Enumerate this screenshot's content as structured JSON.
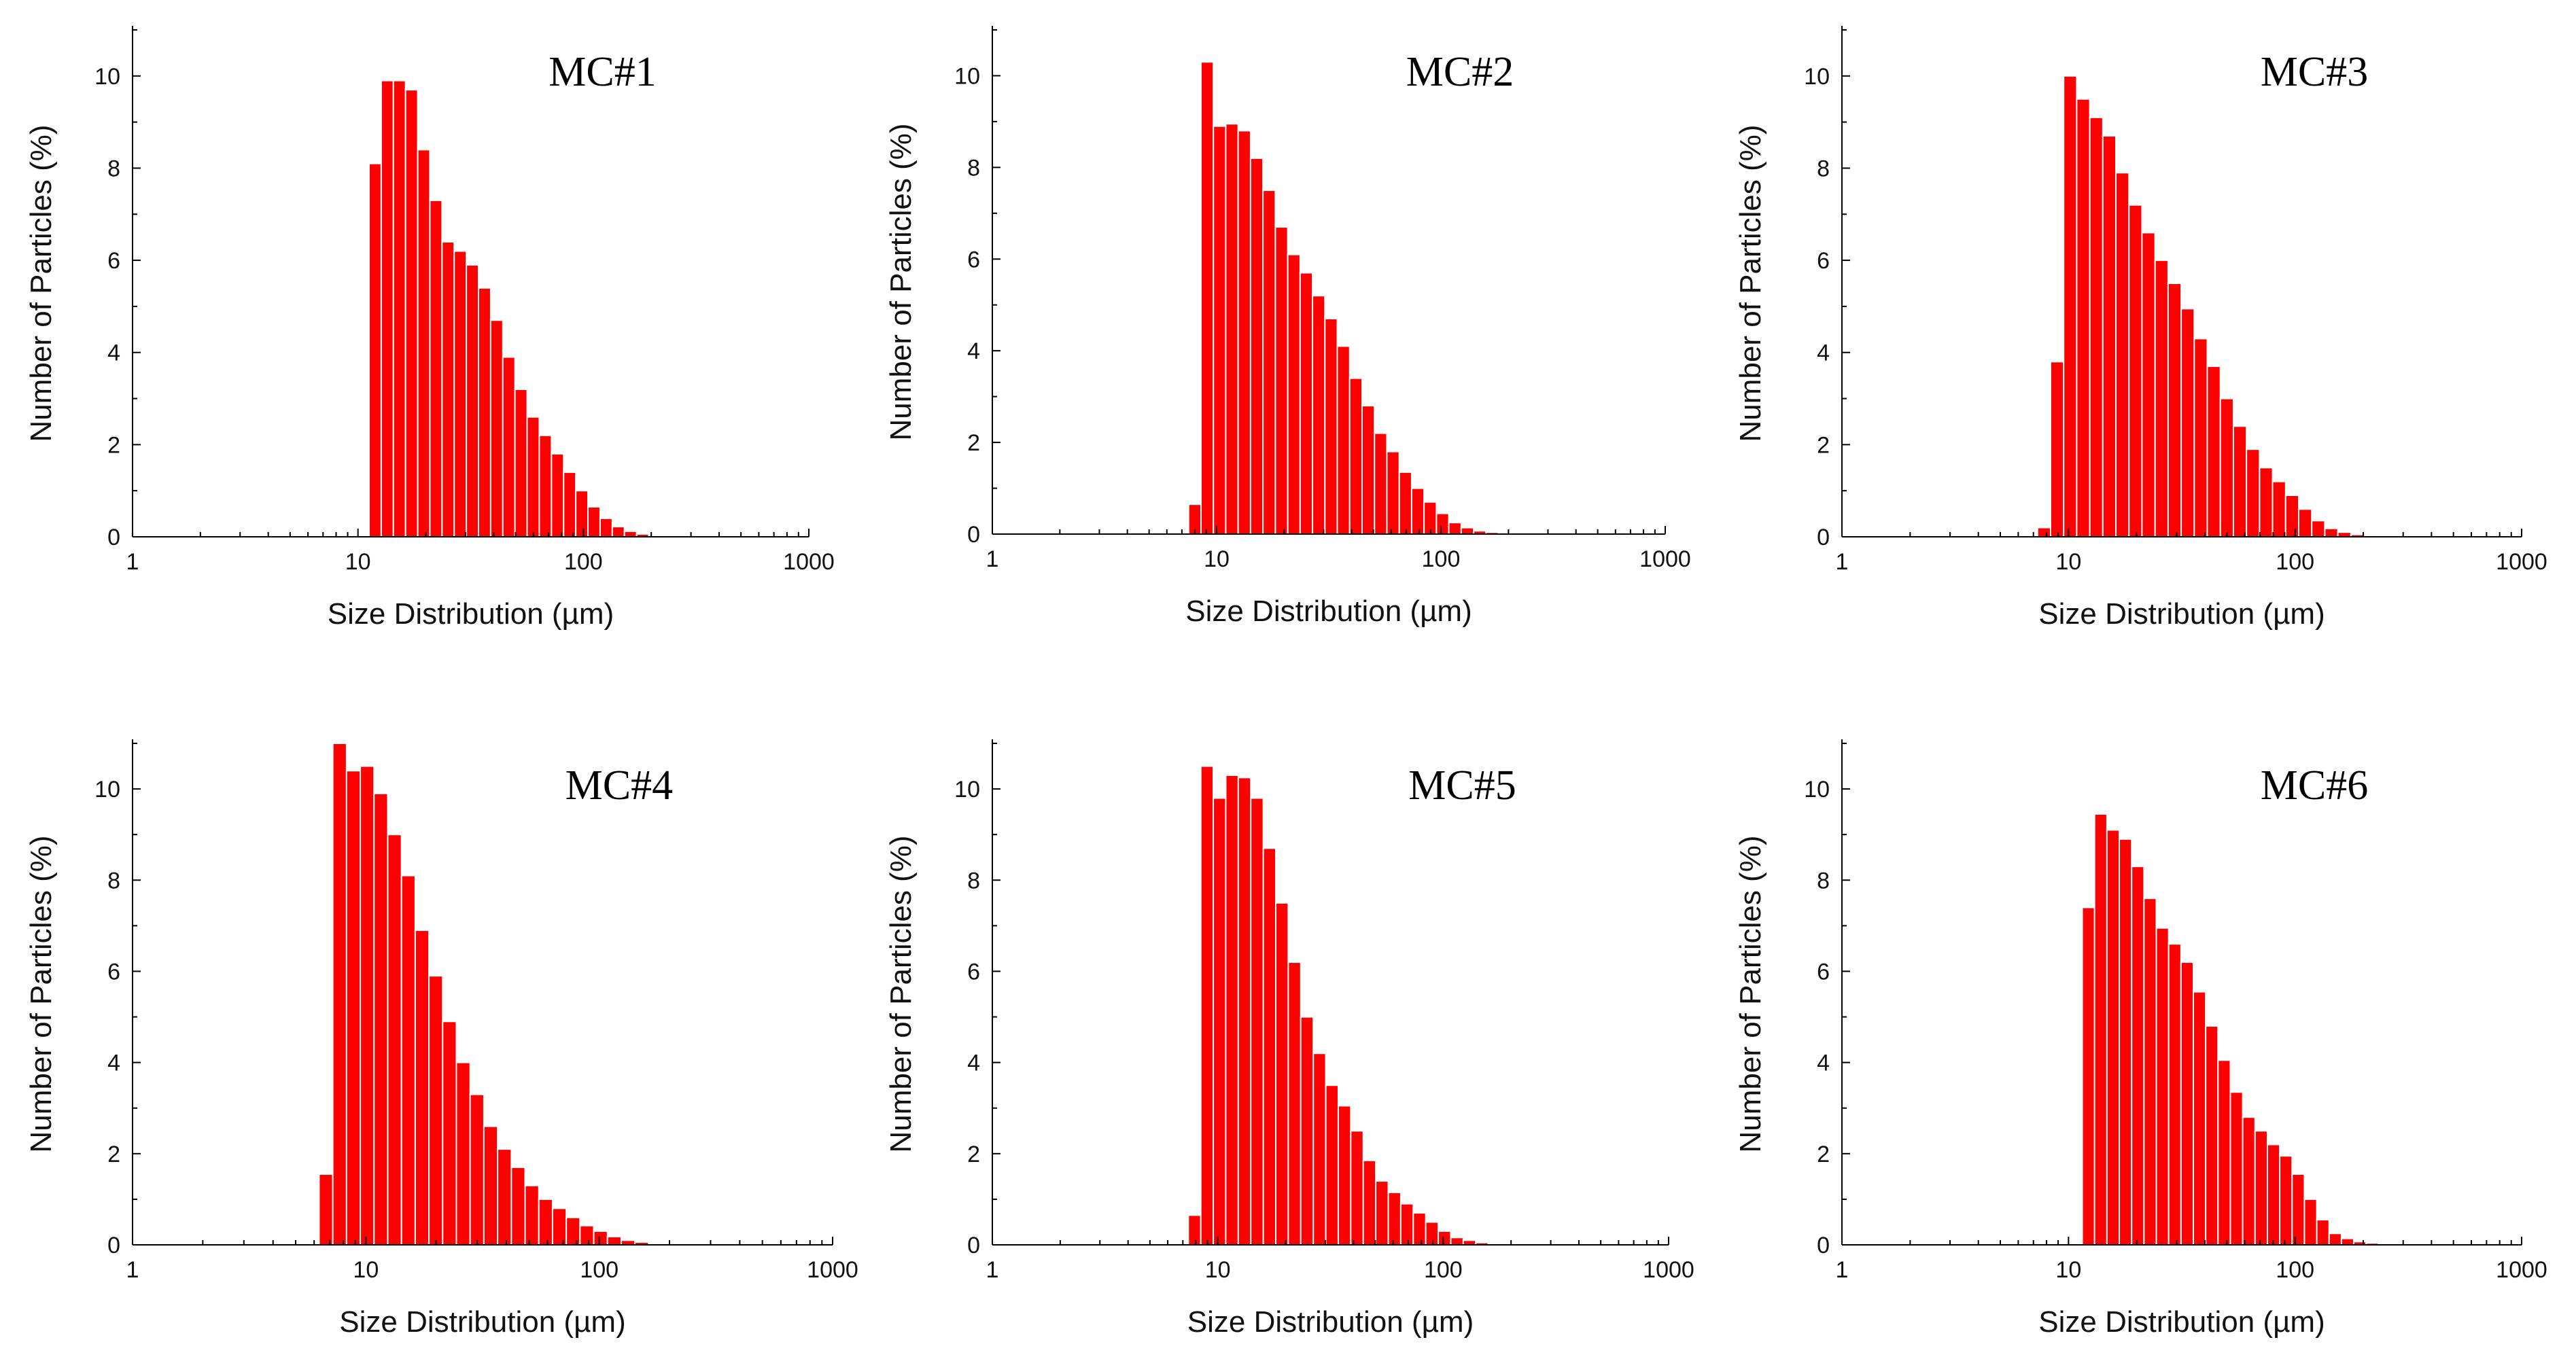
{
  "figure": {
    "bar_color": "#ff0000",
    "bar_edge_color": "#ffffff",
    "axis_color": "#000000"
  },
  "chart_data": [
    {
      "type": "bar",
      "title": "MC#1",
      "xlabel": "Size Distribution (µm)",
      "ylabel": "Number of Particles (%)",
      "xscale": "log",
      "xlim": [
        1,
        1000
      ],
      "ylim": [
        0,
        11
      ],
      "xticks": [
        1,
        10,
        100,
        1000
      ],
      "xtick_labels": [
        "1",
        "10",
        "100",
        "1000"
      ],
      "yticks": [
        0,
        2,
        4,
        6,
        8,
        10
      ],
      "ytick_labels": [
        "0",
        "2",
        "4",
        "6",
        "8",
        "10"
      ],
      "bins_start": 11.2,
      "bins_end": 283,
      "values": [
        8.1,
        9.9,
        9.9,
        9.7,
        8.4,
        7.3,
        6.4,
        6.2,
        5.9,
        5.4,
        4.7,
        3.9,
        3.2,
        2.6,
        2.2,
        1.8,
        1.4,
        1.0,
        0.65,
        0.4,
        0.22,
        0.12,
        0.06,
        0.03,
        0.01,
        0.01
      ]
    },
    {
      "type": "bar",
      "title": "MC#2",
      "xlabel": "Size Distribution (µm)",
      "ylabel": "Number of Particles (%)",
      "xscale": "log",
      "xlim": [
        1,
        1000
      ],
      "ylim": [
        0,
        11
      ],
      "xticks": [
        1,
        10,
        100,
        1000
      ],
      "xtick_labels": [
        "1",
        "10",
        "100",
        "1000"
      ],
      "yticks": [
        0,
        2,
        4,
        6,
        8,
        10
      ],
      "ytick_labels": [
        "0",
        "2",
        "4",
        "6",
        "8",
        "10"
      ],
      "bins_start": 7.5,
      "bins_end": 300,
      "values": [
        0.65,
        10.3,
        8.9,
        8.95,
        8.8,
        8.2,
        7.5,
        6.7,
        6.1,
        5.7,
        5.2,
        4.7,
        4.1,
        3.4,
        2.8,
        2.2,
        1.8,
        1.35,
        1.0,
        0.7,
        0.45,
        0.25,
        0.14,
        0.07,
        0.04,
        0.02,
        0.01,
        0.01,
        0.01
      ]
    },
    {
      "type": "bar",
      "title": "MC#3",
      "xlabel": "Size Distribution (µm)",
      "ylabel": "Number of Particles (%)",
      "xscale": "log",
      "xlim": [
        1,
        1000
      ],
      "ylim": [
        0,
        11
      ],
      "xticks": [
        1,
        10,
        100,
        1000
      ],
      "xtick_labels": [
        "1",
        "10",
        "100",
        "1000"
      ],
      "yticks": [
        0,
        2,
        4,
        6,
        8,
        10
      ],
      "ytick_labels": [
        "0",
        "2",
        "4",
        "6",
        "8",
        "10"
      ],
      "bins_start": 7.3,
      "bins_end": 300,
      "values": [
        0.2,
        3.8,
        10.0,
        9.5,
        9.1,
        8.7,
        7.9,
        7.2,
        6.6,
        6.0,
        5.5,
        4.95,
        4.3,
        3.7,
        3.0,
        2.4,
        1.9,
        1.5,
        1.2,
        0.9,
        0.6,
        0.35,
        0.18,
        0.1,
        0.05,
        0.03,
        0.01,
        0.01
      ]
    },
    {
      "type": "bar",
      "title": "MC#4",
      "xlabel": "Size Distribution (µm)",
      "ylabel": "Number of Particles (%)",
      "xscale": "log",
      "xlim": [
        1,
        1000
      ],
      "ylim": [
        0,
        11
      ],
      "xticks": [
        1,
        10,
        100,
        1000
      ],
      "xtick_labels": [
        "1",
        "10",
        "100",
        "1000"
      ],
      "yticks": [
        0,
        2,
        4,
        6,
        8,
        10
      ],
      "ytick_labels": [
        "0",
        "2",
        "4",
        "6",
        "8",
        "10"
      ],
      "bins_start": 6.3,
      "bins_end": 280,
      "values": [
        1.55,
        11.0,
        10.4,
        10.5,
        9.9,
        9.0,
        8.1,
        6.9,
        5.9,
        4.9,
        4.0,
        3.3,
        2.6,
        2.1,
        1.7,
        1.3,
        1.0,
        0.8,
        0.6,
        0.42,
        0.3,
        0.18,
        0.1,
        0.06,
        0.03,
        0.02,
        0.01,
        0.01
      ]
    },
    {
      "type": "bar",
      "title": "MC#5",
      "xlabel": "Size Distribution (µm)",
      "ylabel": "Number of Particles (%)",
      "xscale": "log",
      "xlim": [
        1,
        1000
      ],
      "ylim": [
        0,
        11
      ],
      "xticks": [
        1,
        10,
        100,
        1000
      ],
      "xtick_labels": [
        "1",
        "10",
        "100",
        "1000"
      ],
      "yticks": [
        0,
        2,
        4,
        6,
        8,
        10
      ],
      "ytick_labels": [
        "0",
        "2",
        "4",
        "6",
        "8",
        "10"
      ],
      "bins_start": 7.4,
      "bins_end": 300,
      "values": [
        0.65,
        10.5,
        9.8,
        10.3,
        10.25,
        9.8,
        8.7,
        7.5,
        6.2,
        5.0,
        4.2,
        3.5,
        3.05,
        2.5,
        1.85,
        1.4,
        1.15,
        0.9,
        0.7,
        0.5,
        0.3,
        0.16,
        0.1,
        0.05,
        0.03,
        0.02,
        0.01,
        0.01,
        0.01
      ]
    },
    {
      "type": "bar",
      "title": "MC#6",
      "xlabel": "Size Distribution (µm)",
      "ylabel": "Number of Particles (%)",
      "xscale": "log",
      "xlim": [
        1,
        1000
      ],
      "ylim": [
        0,
        11
      ],
      "xticks": [
        1,
        10,
        100,
        1000
      ],
      "xtick_labels": [
        "1",
        "10",
        "100",
        "1000"
      ],
      "yticks": [
        0,
        2,
        4,
        6,
        8,
        10
      ],
      "ytick_labels": [
        "0",
        "2",
        "4",
        "6",
        "8",
        "10"
      ],
      "bins_start": 11.5,
      "bins_end": 300,
      "values": [
        7.4,
        9.45,
        9.1,
        8.9,
        8.3,
        7.6,
        6.95,
        6.6,
        6.2,
        5.55,
        4.8,
        4.05,
        3.35,
        2.8,
        2.5,
        2.2,
        1.95,
        1.55,
        1.0,
        0.55,
        0.25,
        0.14,
        0.07,
        0.04,
        0.02,
        0.01
      ]
    }
  ]
}
